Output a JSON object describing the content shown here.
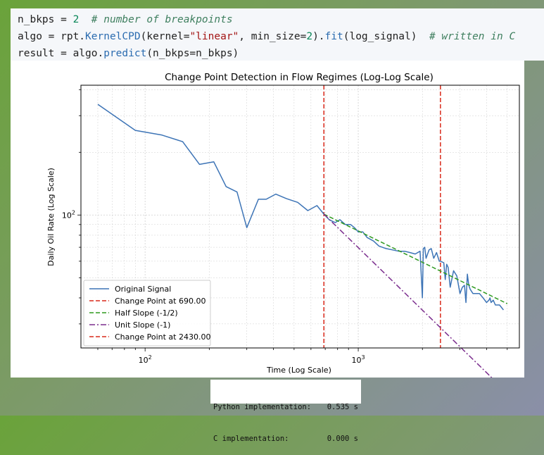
{
  "code": {
    "line1": {
      "var": "n_bkps",
      "eq": " = ",
      "num": "2",
      "comment": "  # number of breakpoints"
    },
    "line2": {
      "a": "algo = rpt.",
      "cls": "KernelCPD",
      "b": "(kernel=",
      "str": "\"linear\"",
      "c": ", min_size=",
      "num": "2",
      "d": ").",
      "fit": "fit",
      "e": "(log_signal)",
      "comment": "  # written in C"
    },
    "line3": {
      "a": "result = algo.",
      "fn": "predict",
      "b": "(n_bkps=n_bkps)"
    }
  },
  "timing": {
    "rows": [
      {
        "label": "Python implementation:",
        "value": "0.535 s"
      },
      {
        "label": "C implementation:",
        "value": "0.000 s"
      }
    ]
  },
  "chart_data": {
    "type": "line",
    "title": "Change Point Detection in Flow Regimes (Log-Log Scale)",
    "xlabel": "Time (Log Scale)",
    "ylabel": "Daily Oil Rate (Log Scale)",
    "xscale": "log",
    "yscale": "log",
    "xlim": [
      50,
      5700
    ],
    "ylim": [
      23,
      420
    ],
    "xticks": [
      {
        "value": 100,
        "label": "10",
        "sup": "2"
      },
      {
        "value": 1000,
        "label": "10",
        "sup": "3"
      }
    ],
    "yticks": [
      {
        "value": 100,
        "label": "10",
        "sup": "2"
      }
    ],
    "grid": true,
    "legend_position": "lower-left",
    "series": [
      {
        "name": "Original Signal",
        "color": "#3d74b6",
        "dash": "solid",
        "x": [
          60,
          90,
          120,
          150,
          180,
          210,
          240,
          270,
          300,
          340,
          370,
          410,
          460,
          520,
          580,
          640,
          690,
          730,
          780,
          820,
          870,
          920,
          960,
          1000,
          1050,
          1100,
          1180,
          1250,
          1350,
          1450,
          1550,
          1650,
          1750,
          1850,
          1950,
          2000,
          2020,
          2050,
          2080,
          2150,
          2200,
          2260,
          2330,
          2400,
          2430,
          2520,
          2560,
          2600,
          2640,
          2700,
          2800,
          2900,
          3000,
          3080,
          3150,
          3200,
          3250,
          3300,
          3350,
          3450,
          3550,
          3700,
          3850,
          4000,
          4100,
          4150,
          4200,
          4300,
          4400,
          4500,
          4600,
          4700,
          4800
        ],
        "y": [
          340,
          255,
          242,
          225,
          175,
          180,
          137,
          129,
          87,
          119,
          119,
          126,
          120,
          115,
          105,
          111,
          101,
          95,
          92,
          95,
          90,
          90,
          87,
          83,
          83,
          78,
          75,
          71,
          69,
          68,
          67,
          67,
          66,
          65,
          67,
          40,
          69,
          70,
          62,
          68,
          69,
          62,
          66,
          60,
          60,
          59,
          49,
          58,
          56,
          45,
          54,
          51,
          42,
          45,
          46,
          38,
          52,
          46,
          44,
          42,
          42,
          42,
          40,
          38,
          39,
          40,
          38,
          39,
          37,
          37,
          37,
          36,
          35
        ]
      },
      {
        "name": "Change Point at 690.00",
        "color": "#d9281a",
        "dash": "dashed",
        "vline": 690
      },
      {
        "name": "Half Slope (-1/2)",
        "color": "#2e9a1f",
        "dash": "dashed",
        "x": [
          690,
          5000
        ],
        "y": [
          101,
          37.5
        ]
      },
      {
        "name": "Unit Slope (-1)",
        "color": "#7b2d8e",
        "dash": "dashdot",
        "x": [
          690,
          5000
        ],
        "y": [
          101,
          14
        ]
      },
      {
        "name": "Change Point at 2430.00",
        "color": "#d9281a",
        "dash": "dashed",
        "vline": 2430
      }
    ]
  }
}
